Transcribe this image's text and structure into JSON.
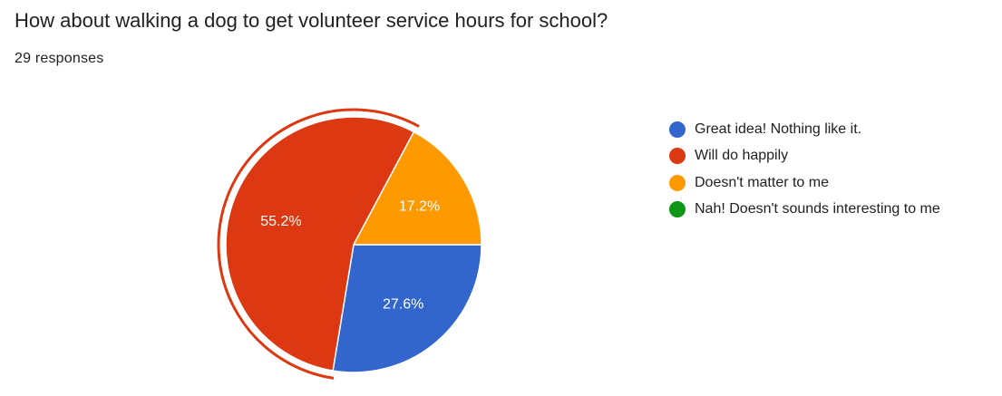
{
  "question": {
    "title": "How about walking a dog to get volunteer service hours for school?",
    "responses": "29 responses"
  },
  "colors": {
    "blue": "#3366cc",
    "red": "#dc3912",
    "orange": "#ff9900",
    "green": "#109618",
    "highlight_ring": "#dc3912"
  },
  "chart_data": {
    "type": "pie",
    "total_responses": 29,
    "highlighted_slice": "Will do happily",
    "slices": [
      {
        "label": "Great idea! Nothing like it.",
        "value": 27.6,
        "count": 8,
        "color": "#3366cc",
        "display": "27.6%"
      },
      {
        "label": "Will do happily",
        "value": 55.2,
        "count": 16,
        "color": "#dc3912",
        "display": "55.2%"
      },
      {
        "label": "Doesn't matter to me",
        "value": 17.2,
        "count": 5,
        "color": "#ff9900",
        "display": "17.2%"
      },
      {
        "label": "Nah! Doesn't sounds interesting to me",
        "value": 0,
        "count": 0,
        "color": "#109618",
        "display": ""
      }
    ],
    "legend_position": "right"
  }
}
